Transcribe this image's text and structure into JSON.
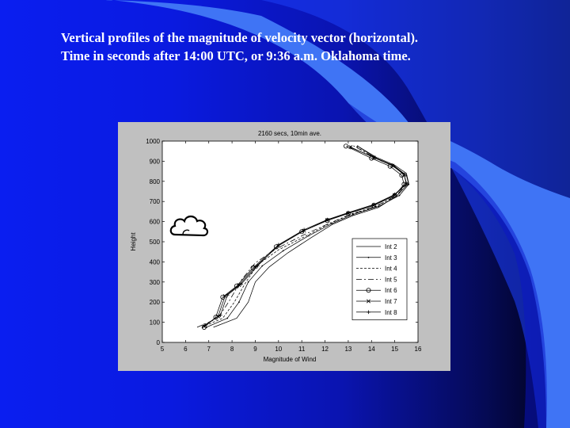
{
  "slide": {
    "title_line1": "Vertical profiles of the magnitude of velocity vector (horizontal).",
    "title_line2": "Time in seconds after 14:00 UTC, or 9:36 a.m. Oklahoma time."
  },
  "colors": {
    "background_blue": "#0a1ef0",
    "swoosh_light": "#3f74f5",
    "figure_gray": "#c0c0c0"
  },
  "icons": {
    "cloud": "cloud-icon"
  },
  "chart_data": {
    "type": "line",
    "title": "2160 secs, 10min ave.",
    "xlabel": "Magnitude of Wind",
    "ylabel": "Height",
    "xlim": [
      5,
      16
    ],
    "ylim": [
      0,
      1000
    ],
    "xticks": [
      5,
      6,
      7,
      8,
      9,
      10,
      11,
      12,
      13,
      14,
      15,
      16
    ],
    "yticks": [
      0,
      100,
      200,
      300,
      400,
      500,
      600,
      700,
      800,
      900,
      1000
    ],
    "grid": false,
    "legend_position": "lower-right",
    "series": [
      {
        "name": "Int 2",
        "marker": "none",
        "dash": "",
        "x": [
          7.2,
          8.2,
          8.7,
          9.0,
          9.6,
          10.4,
          11.4,
          12.3,
          13.2,
          14.3,
          15.1,
          15.6,
          15.5,
          15.0,
          14.2,
          13.4
        ],
        "y": [
          75,
          120,
          200,
          300,
          375,
          445,
          520,
          585,
          630,
          670,
          730,
          790,
          840,
          880,
          920,
          975
        ]
      },
      {
        "name": "Int 3",
        "marker": "dot",
        "dash": "",
        "x": [
          6.9,
          7.8,
          8.3,
          8.7,
          9.3,
          10.2,
          11.3,
          12.3,
          13.2,
          14.3,
          15.2,
          15.6,
          15.5,
          15.0,
          14.2,
          13.4
        ],
        "y": [
          75,
          120,
          200,
          300,
          380,
          455,
          530,
          590,
          635,
          675,
          730,
          785,
          830,
          875,
          915,
          975
        ]
      },
      {
        "name": "Int 4",
        "marker": "none",
        "dash": "3,2",
        "x": [
          6.7,
          7.6,
          8.1,
          8.6,
          9.1,
          10.0,
          11.2,
          12.2,
          13.1,
          14.2,
          15.1,
          15.5,
          15.4,
          14.9,
          14.1,
          13.3
        ],
        "y": [
          75,
          120,
          200,
          300,
          385,
          460,
          530,
          590,
          635,
          675,
          730,
          790,
          835,
          878,
          918,
          975
        ]
      },
      {
        "name": "Int 5",
        "marker": "none",
        "dash": "7,3,2,3",
        "x": [
          6.5,
          7.4,
          7.9,
          8.4,
          9.0,
          9.9,
          11.1,
          12.2,
          13.1,
          14.2,
          15.1,
          15.5,
          15.4,
          14.9,
          14.1,
          13.2
        ],
        "y": [
          75,
          120,
          210,
          310,
          395,
          465,
          535,
          592,
          637,
          677,
          732,
          792,
          837,
          880,
          920,
          978
        ]
      },
      {
        "name": "Int 6",
        "marker": "circle",
        "dash": "",
        "x": [
          6.8,
          7.3,
          7.6,
          8.2,
          8.9,
          9.9,
          11.0,
          12.1,
          13.0,
          14.1,
          15.0,
          15.4,
          15.3,
          14.8,
          14.0,
          12.9
        ],
        "y": [
          75,
          125,
          225,
          280,
          370,
          475,
          550,
          605,
          640,
          680,
          730,
          785,
          830,
          875,
          915,
          975
        ]
      },
      {
        "name": "Int 7",
        "marker": "x",
        "dash": "",
        "x": [
          6.8,
          7.4,
          7.7,
          8.3,
          9.0,
          10.0,
          11.1,
          12.1,
          13.0,
          14.1,
          15.0,
          15.5,
          15.4,
          14.9,
          14.1,
          13.1
        ],
        "y": [
          80,
          130,
          230,
          285,
          375,
          480,
          555,
          608,
          642,
          682,
          732,
          788,
          833,
          878,
          918,
          970
        ]
      },
      {
        "name": "Int 8",
        "marker": "plus",
        "dash": "",
        "x": [
          6.8,
          7.5,
          7.8,
          8.4,
          9.1,
          10.0,
          11.1,
          12.1,
          13.0,
          14.1,
          15.0,
          15.5,
          15.4,
          14.9,
          14.1,
          13.1
        ],
        "y": [
          85,
          135,
          235,
          290,
          380,
          485,
          560,
          610,
          645,
          685,
          735,
          790,
          835,
          880,
          920,
          968
        ]
      }
    ]
  }
}
